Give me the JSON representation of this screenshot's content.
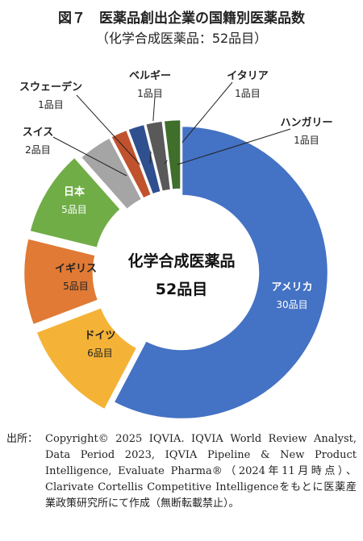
{
  "title": "図７　医薬品創出企業の国籍別医薬品数",
  "subtitle": "（化学合成医薬品：52品目）",
  "chart_data": {
    "type": "pie",
    "donut": true,
    "center_title": "化学合成医薬品",
    "center_value": "52品目",
    "total": 52,
    "slices": [
      {
        "name": "アメリカ",
        "label": "30品目",
        "value": 30,
        "color": "#4472c4"
      },
      {
        "name": "ドイツ",
        "label": "6品目",
        "value": 6,
        "color": "#f4b336"
      },
      {
        "name": "イギリス",
        "label": "5品目",
        "value": 5,
        "color": "#e07a35"
      },
      {
        "name": "日本",
        "label": "5品目",
        "value": 5,
        "color": "#70ad47"
      },
      {
        "name": "スイス",
        "label": "2品目",
        "value": 2,
        "color": "#a5a5a5"
      },
      {
        "name": "スウェーデン",
        "label": "1品目",
        "value": 1,
        "color": "#c0522e"
      },
      {
        "name": "ベルギー",
        "label": "1品目",
        "value": 1,
        "color": "#2f4f8f"
      },
      {
        "name": "イタリア",
        "label": "1品目",
        "value": 1,
        "color": "#595959"
      },
      {
        "name": "ハンガリー",
        "label": "1品目",
        "value": 1,
        "color": "#3f6f2b"
      }
    ]
  },
  "source": {
    "label": "出所：",
    "text": "Copyright© 2025 IQVIA. IQVIA World Review Analyst, Data Period 2023, IQVIA Pipeline & New Product Intelligence, Evaluate Pharma®（2024年11月時点）、Clarivate Cortellis Competitive Intelligenceをもとに医薬産業政策研究所にて作成（無断転載禁止）。"
  }
}
